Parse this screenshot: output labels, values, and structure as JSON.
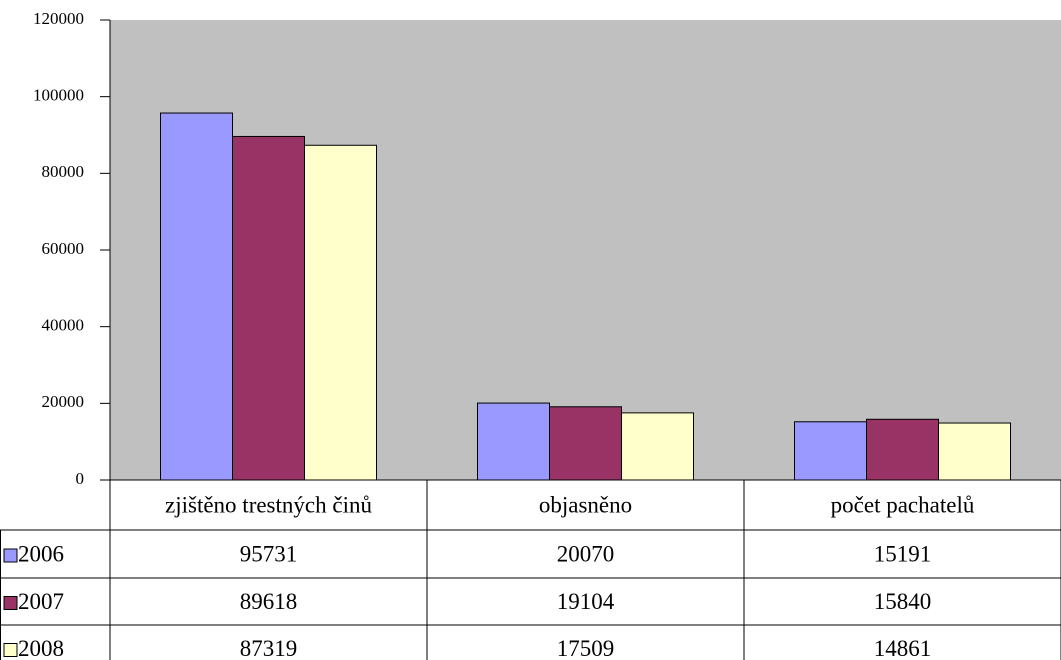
{
  "chart_data": {
    "type": "bar",
    "categories": [
      "zjištěno trestných činů",
      "objasněno",
      "počet pachatelů"
    ],
    "series": [
      {
        "name": "2006",
        "color": "#9999ff",
        "values": [
          95731,
          20070,
          15191
        ]
      },
      {
        "name": "2007",
        "color": "#993366",
        "values": [
          89618,
          19104,
          15840
        ]
      },
      {
        "name": "2008",
        "color": "#ffffcc",
        "values": [
          87319,
          17509,
          14861
        ]
      }
    ],
    "ylim": [
      0,
      120000
    ],
    "yticks": [
      0,
      20000,
      40000,
      60000,
      80000,
      100000,
      120000
    ],
    "plot_background": "#c0c0c0"
  }
}
